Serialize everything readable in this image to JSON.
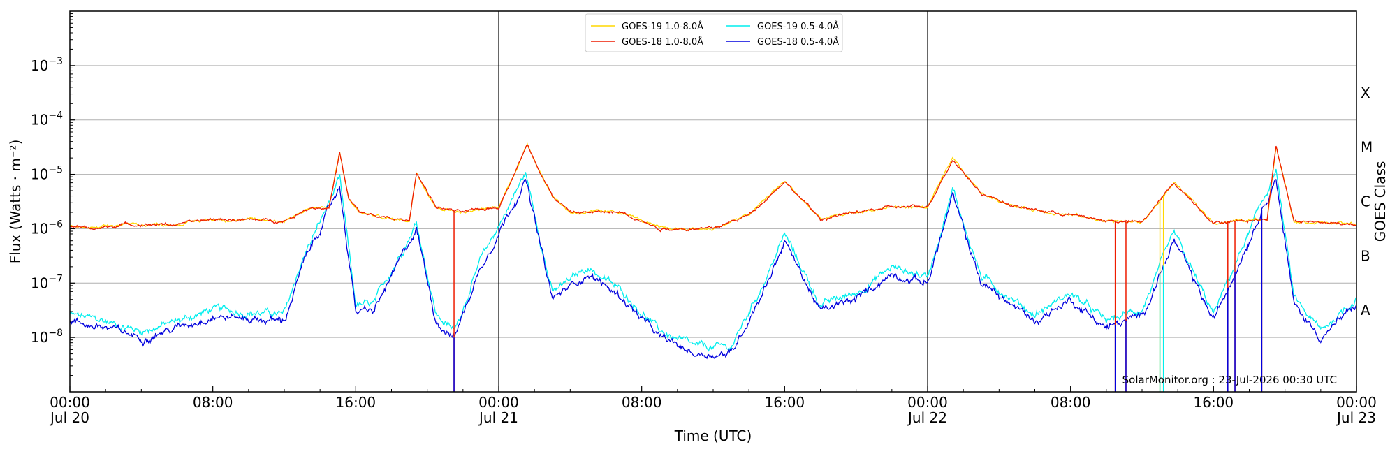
{
  "chart_data": {
    "type": "line",
    "title": "",
    "xlabel": "Time (UTC)",
    "ylabel": "Flux (Watts · m⁻²)",
    "ylabel_right": "GOES Class",
    "y_scale": "log",
    "ylim": [
      1e-09,
      0.01
    ],
    "xlim": [
      "2026-07-20 00:00",
      "2026-07-23 00:00"
    ],
    "grid": "horizontal",
    "legend_position": "top-center",
    "watermark": "SolarMonitor.org : 23-Jul-2026 00:30 UTC",
    "x_ticks": [
      {
        "t": "2026-07-20 00:00",
        "time": "00:00",
        "date": "Jul 20"
      },
      {
        "t": "2026-07-20 08:00",
        "time": "08:00",
        "date": ""
      },
      {
        "t": "2026-07-20 16:00",
        "time": "16:00",
        "date": ""
      },
      {
        "t": "2026-07-21 00:00",
        "time": "00:00",
        "date": "Jul 21"
      },
      {
        "t": "2026-07-21 08:00",
        "time": "08:00",
        "date": ""
      },
      {
        "t": "2026-07-21 16:00",
        "time": "16:00",
        "date": ""
      },
      {
        "t": "2026-07-22 00:00",
        "time": "00:00",
        "date": "Jul 22"
      },
      {
        "t": "2026-07-22 08:00",
        "time": "08:00",
        "date": ""
      },
      {
        "t": "2026-07-22 16:00",
        "time": "16:00",
        "date": ""
      },
      {
        "t": "2026-07-23 00:00",
        "time": "00:00",
        "date": "Jul 23"
      }
    ],
    "day_lines": [
      "2026-07-21 00:00",
      "2026-07-22 00:00"
    ],
    "y_ticks": [
      {
        "value": 1e-08,
        "mantissa": "10",
        "exp": "−8"
      },
      {
        "value": 1e-07,
        "mantissa": "10",
        "exp": "−7"
      },
      {
        "value": 1e-06,
        "mantissa": "10",
        "exp": "−6"
      },
      {
        "value": 1e-05,
        "mantissa": "10",
        "exp": "−5"
      },
      {
        "value": 0.0001,
        "mantissa": "10",
        "exp": "−4"
      },
      {
        "value": 0.001,
        "mantissa": "10",
        "exp": "−3"
      }
    ],
    "goes_classes": [
      {
        "label": "A",
        "value": 3.16e-08
      },
      {
        "label": "B",
        "value": 3.16e-07
      },
      {
        "label": "C",
        "value": 3.16e-06
      },
      {
        "label": "M",
        "value": 3.16e-05
      },
      {
        "label": "X",
        "value": 0.000316
      }
    ],
    "series": [
      {
        "name": "GOES-19 1.0-8.0Å",
        "color": "#ffd700",
        "band": "long",
        "satellite": "goes19"
      },
      {
        "name": "GOES-18 1.0-8.0Å",
        "color": "#ee1c00",
        "band": "long",
        "satellite": "goes18"
      },
      {
        "name": "GOES-19 0.5-4.0Å",
        "color": "#00eeee",
        "band": "short",
        "satellite": "goes19"
      },
      {
        "name": "GOES-18 0.5-4.0Å",
        "color": "#0000dd",
        "band": "short",
        "satellite": "goes18"
      }
    ],
    "long_band_key_points": [
      [
        0.0,
        1.1e-06
      ],
      [
        1.5,
        1e-06
      ],
      [
        3.0,
        1.2e-06
      ],
      [
        6.0,
        1.2e-06
      ],
      [
        8.0,
        1.5e-06
      ],
      [
        12.0,
        1.4e-06
      ],
      [
        13.5,
        2.5e-06
      ],
      [
        14.5,
        2.4e-06
      ],
      [
        15.1,
        2.5e-05
      ],
      [
        15.6,
        3.5e-06
      ],
      [
        16.2,
        2e-06
      ],
      [
        18.0,
        1.5e-06
      ],
      [
        19.0,
        1.4e-06
      ],
      [
        19.4,
        1.1e-05
      ],
      [
        20.5,
        2.5e-06
      ],
      [
        22.0,
        2e-06
      ],
      [
        24.0,
        2.5e-06
      ],
      [
        25.6,
        3.5e-05
      ],
      [
        27.0,
        4e-06
      ],
      [
        28.0,
        2e-06
      ],
      [
        31.0,
        2e-06
      ],
      [
        33.0,
        1e-06
      ],
      [
        36.0,
        1e-06
      ],
      [
        38.0,
        1.8e-06
      ],
      [
        40.0,
        7.5e-06
      ],
      [
        42.0,
        1.5e-06
      ],
      [
        44.0,
        2e-06
      ],
      [
        46.0,
        2.5e-06
      ],
      [
        48.0,
        2.5e-06
      ],
      [
        49.4,
        1.9e-05
      ],
      [
        51.0,
        4.5e-06
      ],
      [
        53.0,
        2.5e-06
      ],
      [
        55.0,
        2e-06
      ],
      [
        56.0,
        1.8e-06
      ],
      [
        58.0,
        1.4e-06
      ],
      [
        60.0,
        1.3e-06
      ],
      [
        61.8,
        7e-06
      ],
      [
        64.0,
        1.3e-06
      ],
      [
        67.0,
        1.5e-06
      ],
      [
        67.5,
        3.5e-05
      ],
      [
        68.5,
        1.4e-06
      ],
      [
        72.0,
        1.2e-06
      ]
    ],
    "short_band_key_points": [
      [
        0.0,
        2e-08
      ],
      [
        2.0,
        1.5e-08
      ],
      [
        4.0,
        1e-08
      ],
      [
        6.0,
        1.5e-08
      ],
      [
        8.0,
        2.5e-08
      ],
      [
        12.0,
        2e-08
      ],
      [
        13.0,
        2e-07
      ],
      [
        15.1,
        6e-06
      ],
      [
        16.0,
        3e-08
      ],
      [
        17.0,
        3e-08
      ],
      [
        19.4,
        1e-06
      ],
      [
        20.5,
        2e-08
      ],
      [
        21.5,
        1e-08
      ],
      [
        23.0,
        2e-07
      ],
      [
        25.5,
        8e-06
      ],
      [
        27.0,
        5e-08
      ],
      [
        29.0,
        1.5e-07
      ],
      [
        31.0,
        5e-08
      ],
      [
        33.0,
        1e-08
      ],
      [
        35.0,
        5e-09
      ],
      [
        37.0,
        5e-09
      ],
      [
        39.0,
        1e-07
      ],
      [
        40.0,
        6e-07
      ],
      [
        42.0,
        3e-08
      ],
      [
        44.0,
        5e-08
      ],
      [
        46.0,
        1.5e-07
      ],
      [
        48.0,
        1e-07
      ],
      [
        49.4,
        4e-06
      ],
      [
        51.0,
        1e-07
      ],
      [
        54.0,
        2e-08
      ],
      [
        56.0,
        5e-08
      ],
      [
        58.0,
        1.5e-08
      ],
      [
        60.0,
        2.5e-08
      ],
      [
        61.8,
        6e-07
      ],
      [
        64.0,
        2e-08
      ],
      [
        67.5,
        9e-06
      ],
      [
        68.5,
        4e-08
      ],
      [
        70.0,
        1e-08
      ],
      [
        72.0,
        4e-08
      ]
    ]
  }
}
